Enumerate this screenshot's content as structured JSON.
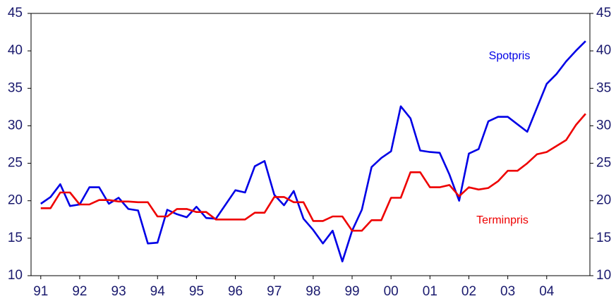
{
  "chart_data": {
    "type": "line",
    "x": [
      1991,
      1991.25,
      1991.5,
      1991.75,
      1992,
      1992.25,
      1992.5,
      1992.75,
      1993,
      1993.25,
      1993.5,
      1993.75,
      1994,
      1994.25,
      1994.5,
      1994.75,
      1995,
      1995.25,
      1995.5,
      1995.75,
      1996,
      1996.25,
      1996.5,
      1996.75,
      1997,
      1997.25,
      1997.5,
      1997.75,
      1998,
      1998.25,
      1998.5,
      1998.75,
      1999,
      1999.25,
      1999.5,
      1999.75,
      2000,
      2000.25,
      2000.5,
      2000.75,
      2001,
      2001.25,
      2001.5,
      2001.75,
      2002,
      2002.25,
      2002.5,
      2002.75,
      2003,
      2003.25,
      2003.5,
      2003.75,
      2004,
      2004.25,
      2004.5,
      2004.75,
      2005
    ],
    "series": [
      {
        "name": "Spotpris",
        "color": "#0000e6",
        "values": [
          19.6,
          20.5,
          22.2,
          19.3,
          19.5,
          21.8,
          21.8,
          19.6,
          20.4,
          18.9,
          18.7,
          14.3,
          14.4,
          18.8,
          18.2,
          17.8,
          19.2,
          17.7,
          17.6,
          19.5,
          21.4,
          21.1,
          24.6,
          25.3,
          20.8,
          19.4,
          21.3,
          17.6,
          16.1,
          14.3,
          16.0,
          11.9,
          16.0,
          18.8,
          24.5,
          25.7,
          26.6,
          32.6,
          31.0,
          26.7,
          26.5,
          26.4,
          23.5,
          20.0,
          26.3,
          26.9,
          30.6,
          31.2,
          31.2,
          30.2,
          29.2,
          32.4,
          35.6,
          36.9,
          38.6,
          40.0,
          41.3
        ]
      },
      {
        "name": "Terminpris",
        "color": "#ee0000",
        "values": [
          19.0,
          19.0,
          21.1,
          21.1,
          19.5,
          19.5,
          20.1,
          20.1,
          19.9,
          19.9,
          19.8,
          19.8,
          17.9,
          17.9,
          18.9,
          18.9,
          18.5,
          18.5,
          17.5,
          17.5,
          17.5,
          17.5,
          18.4,
          18.4,
          20.5,
          20.5,
          19.8,
          19.8,
          17.3,
          17.3,
          17.9,
          17.9,
          16.0,
          16.0,
          17.4,
          17.4,
          20.4,
          20.4,
          23.8,
          23.8,
          21.8,
          21.8,
          22.1,
          20.6,
          21.8,
          21.5,
          21.7,
          22.6,
          24.0,
          24.0,
          25.0,
          26.2,
          26.5,
          27.3,
          28.1,
          30.1,
          31.6
        ]
      }
    ],
    "xlim": [
      1990.75,
      2005.11
    ],
    "xticks": [
      {
        "value": 1991,
        "label": "91"
      },
      {
        "value": 1992,
        "label": "92"
      },
      {
        "value": 1993,
        "label": "93"
      },
      {
        "value": 1994,
        "label": "94"
      },
      {
        "value": 1995,
        "label": "95"
      },
      {
        "value": 1996,
        "label": "96"
      },
      {
        "value": 1997,
        "label": "97"
      },
      {
        "value": 1998,
        "label": "98"
      },
      {
        "value": 1999,
        "label": "99"
      },
      {
        "value": 2000,
        "label": "00"
      },
      {
        "value": 2001,
        "label": "01"
      },
      {
        "value": 2002,
        "label": "02"
      },
      {
        "value": 2003,
        "label": "03"
      },
      {
        "value": 2004,
        "label": "04"
      }
    ],
    "ylim": [
      10,
      45
    ],
    "yticks": [
      10,
      15,
      20,
      25,
      30,
      35,
      40,
      45
    ],
    "y2lim": [
      10,
      45
    ],
    "y2ticks": [
      10,
      15,
      20,
      25,
      30,
      35,
      40,
      45
    ]
  }
}
